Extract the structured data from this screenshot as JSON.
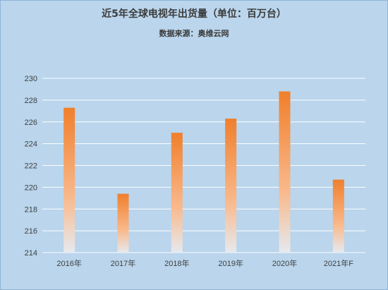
{
  "title": "近5年全球电视年出货量（单位：百万台）",
  "subtitle": "数据来源：奥维云网",
  "chart_data": {
    "type": "bar",
    "categories": [
      "2016年",
      "2017年",
      "2018年",
      "2019年",
      "2020年",
      "2021年F"
    ],
    "values": [
      227.3,
      219.4,
      225.0,
      226.3,
      228.8,
      220.7
    ],
    "ylim": [
      214,
      230
    ],
    "yticks": [
      214,
      216,
      218,
      220,
      222,
      224,
      226,
      228,
      230
    ],
    "grid": true,
    "bar_color_top": "#f07f2c",
    "bar_color_mid": "#f9b98c",
    "bar_color_bottom": "#e6e9ee",
    "grid_color": "#ffffff",
    "background": "#bad5ec"
  }
}
